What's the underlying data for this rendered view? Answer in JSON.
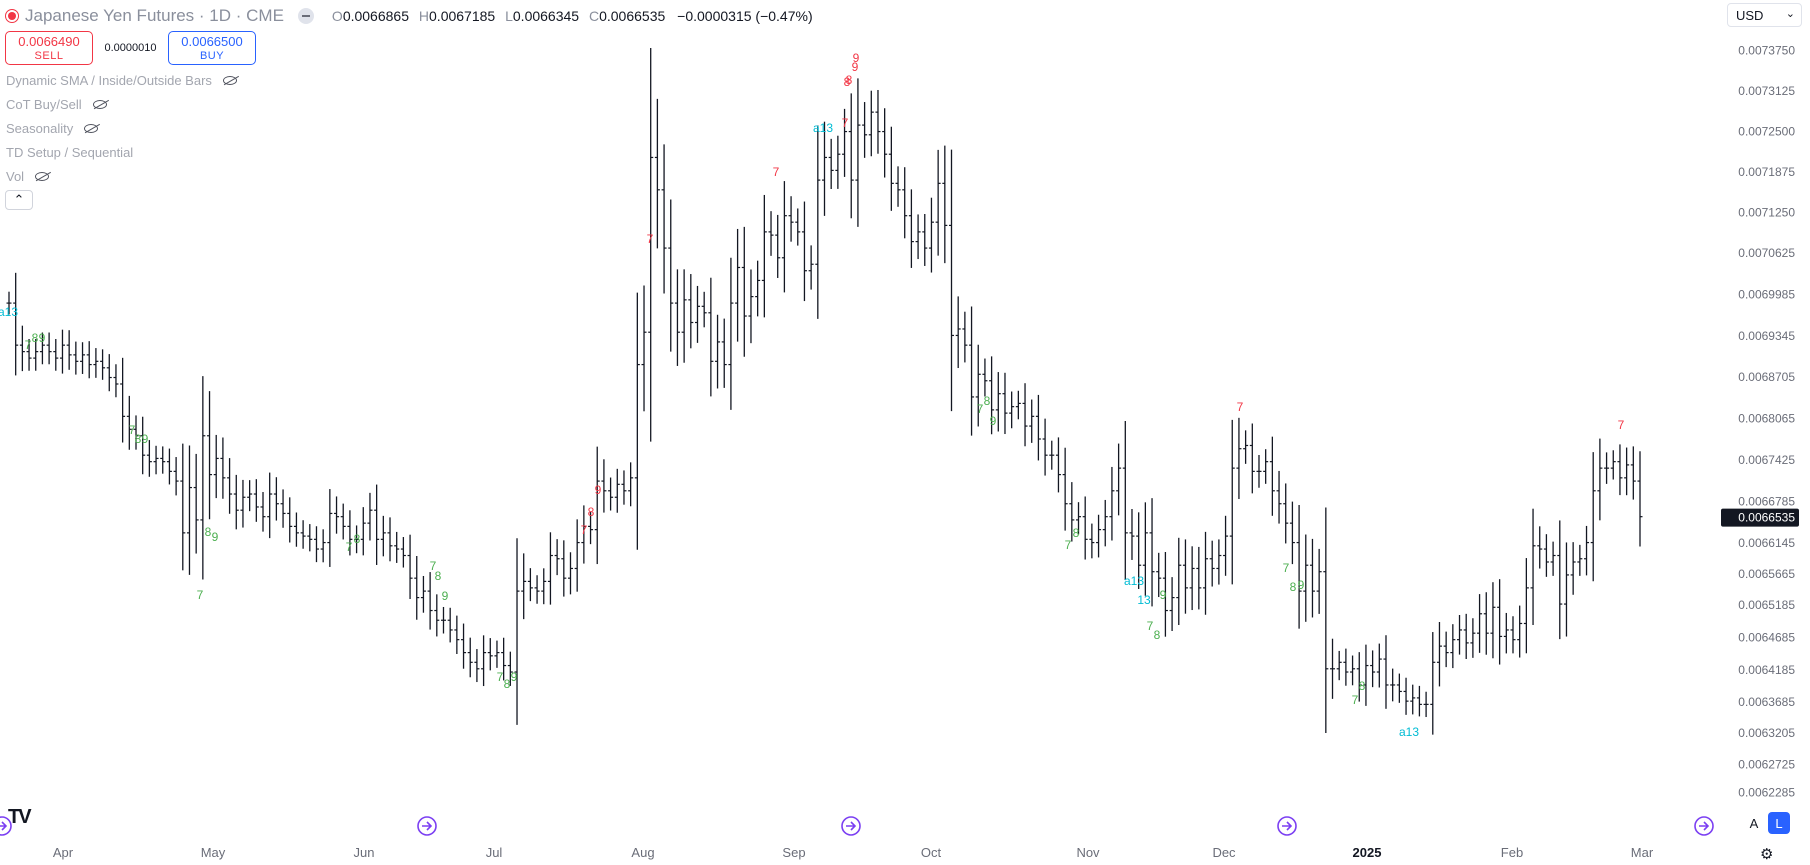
{
  "header": {
    "symbol": "Japanese Yen Futures · 1D · CME",
    "open_key": "O",
    "open": "0.0066865",
    "high_key": "H",
    "high": "0.0067185",
    "low_key": "L",
    "low": "0.0066345",
    "close_key": "C",
    "close": "0.0066535",
    "change": "−0.0000315 (−0.47%)"
  },
  "trade": {
    "sell_price": "0.0066490",
    "sell_label": "SELL",
    "spread": "0.0000010",
    "buy_price": "0.0066500",
    "buy_label": "BUY"
  },
  "indicators": [
    {
      "label": "Dynamic SMA / Inside/Outside Bars"
    },
    {
      "label": "CoT Buy/Sell"
    },
    {
      "label": "Seasonality"
    },
    {
      "label": "TD Setup / Sequential"
    },
    {
      "label": "Vol"
    }
  ],
  "currency": "USD",
  "scale_buttons": {
    "auto": "A",
    "log": "L"
  },
  "colors": {
    "buy_setup": "#4caf50",
    "sell_setup": "#f23645",
    "countdown": "#00bcd4",
    "bars": "#131722",
    "axis_text": "#6a6d78",
    "last_price_bg": "#131722"
  },
  "chart_data": {
    "type": "ohlc",
    "title": "Japanese Yen Futures · 1D · CME",
    "xlabel": "",
    "ylabel": "",
    "ylim": [
      0.006225,
      0.00741
    ],
    "y_ticks": [
      "0.0073750",
      "0.0073125",
      "0.0072500",
      "0.0071875",
      "0.0071250",
      "0.0070625",
      "0.0069985",
      "0.0069345",
      "0.0068705",
      "0.0068065",
      "0.0067425",
      "0.0066785",
      "0.0066145",
      "0.0065665",
      "0.0065185",
      "0.0064685",
      "0.0064185",
      "0.0063685",
      "0.0063205",
      "0.0062725",
      "0.0062285"
    ],
    "x_ticks": [
      "Apr",
      "May",
      "Jun",
      "Jul",
      "Aug",
      "Sep",
      "Oct",
      "Nov",
      "Dec",
      "2025",
      "Feb",
      "Mar"
    ],
    "last_price": "0.0066535",
    "closes": [
      0.006985,
      0.00692,
      0.00691,
      0.0069,
      0.00691,
      0.00692,
      0.00691,
      0.0069,
      0.00692,
      0.006905,
      0.006895,
      0.006905,
      0.00689,
      0.006895,
      0.006885,
      0.00687,
      0.00686,
      0.00681,
      0.00679,
      0.00678,
      0.00675,
      0.00674,
      0.006745,
      0.00674,
      0.006725,
      0.00671,
      0.00663,
      0.0067,
      0.00665,
      0.00678,
      0.00672,
      0.006745,
      0.006715,
      0.00669,
      0.006665,
      0.006685,
      0.00669,
      0.00667,
      0.006655,
      0.00669,
      0.006675,
      0.00666,
      0.00664,
      0.00663,
      0.006625,
      0.00662,
      0.006605,
      0.006615,
      0.00666,
      0.006655,
      0.00664,
      0.00662,
      0.00662,
      0.006645,
      0.006665,
      0.00662,
      0.00663,
      0.00661,
      0.006605,
      0.006595,
      0.00656,
      0.00653,
      0.00654,
      0.00651,
      0.006495,
      0.006495,
      0.00648,
      0.006465,
      0.006445,
      0.00643,
      0.00642,
      0.006445,
      0.00644,
      0.006445,
      0.006425,
      0.006415,
      0.00654,
      0.006555,
      0.006545,
      0.00654,
      0.006555,
      0.006595,
      0.00659,
      0.00656,
      0.006575,
      0.006615,
      0.00664,
      0.006635,
      0.00671,
      0.006695,
      0.006685,
      0.006705,
      0.006695,
      0.006715,
      0.00689,
      0.00694,
      0.00721,
      0.00716,
      0.00707,
      0.006985,
      0.00694,
      0.00699,
      0.006955,
      0.00698,
      0.00697,
      0.006895,
      0.006925,
      0.00689,
      0.006985,
      0.00704,
      0.006965,
      0.006995,
      0.00702,
      0.007095,
      0.00709,
      0.007055,
      0.00712,
      0.00711,
      0.007095,
      0.007035,
      0.007045,
      0.007175,
      0.00721,
      0.00719,
      0.007215,
      0.00725,
      0.007175,
      0.00726,
      0.007245,
      0.00728,
      0.00725,
      0.007215,
      0.00717,
      0.00716,
      0.00712,
      0.00708,
      0.007095,
      0.00707,
      0.00711,
      0.00717,
      0.007105,
      0.006935,
      0.006945,
      0.00692,
      0.00684,
      0.006875,
      0.006865,
      0.00682,
      0.006845,
      0.006815,
      0.006825,
      0.00683,
      0.006795,
      0.00681,
      0.006775,
      0.00675,
      0.00675,
      0.00672,
      0.006675,
      0.00665,
      0.006655,
      0.00662,
      0.006615,
      0.006635,
      0.006655,
      0.006695,
      0.00673,
      0.00663,
      0.006625,
      0.00658,
      0.00663,
      0.00657,
      0.00656,
      0.00651,
      0.00653,
      0.00658,
      0.006545,
      0.006575,
      0.006545,
      0.00659,
      0.006575,
      0.006595,
      0.006625,
      0.00673,
      0.00676,
      0.006765,
      0.006725,
      0.006725,
      0.00674,
      0.006695,
      0.006675,
      0.006645,
      0.006615,
      0.00654,
      0.00658,
      0.00654,
      0.00657,
      0.00642,
      0.00642,
      0.00643,
      0.006415,
      0.00642,
      0.006395,
      0.006425,
      0.006415,
      0.006435,
      0.006395,
      0.006395,
      0.006385,
      0.00637,
      0.006375,
      0.006365,
      0.006365,
      0.00643,
      0.006455,
      0.006445,
      0.006465,
      0.00648,
      0.00646,
      0.006475,
      0.006505,
      0.006475,
      0.006515,
      0.00647,
      0.00648,
      0.006465,
      0.00649,
      0.006545,
      0.00661,
      0.006605,
      0.006585,
      0.006595,
      0.00652,
      0.006565,
      0.006585,
      0.00659,
      0.006615,
      0.006695,
      0.00673,
      0.00673,
      0.00674,
      0.006715,
      0.006735,
      0.00671,
      0.006655
    ]
  },
  "td_labels": [
    {
      "t": "a13",
      "c": "countdown"
    },
    {
      "t": "7",
      "c": "buy"
    },
    {
      "t": "8",
      "c": "buy"
    },
    {
      "t": "9",
      "c": "buy"
    },
    {
      "t": "7",
      "c": "buy"
    },
    {
      "t": "8",
      "c": "buy"
    },
    {
      "t": "9",
      "c": "buy"
    },
    {
      "t": "8",
      "c": "buy"
    },
    {
      "t": "9",
      "c": "buy"
    },
    {
      "t": "7",
      "c": "buy"
    },
    {
      "t": "7",
      "c": "buy"
    },
    {
      "t": "8",
      "c": "buy"
    },
    {
      "t": "7",
      "c": "buy"
    },
    {
      "t": "8",
      "c": "buy"
    },
    {
      "t": "9",
      "c": "buy"
    },
    {
      "t": "7",
      "c": "buy"
    },
    {
      "t": "8",
      "c": "buy"
    },
    {
      "t": "9",
      "c": "buy"
    },
    {
      "t": "7",
      "c": "sell"
    },
    {
      "t": "8",
      "c": "sell"
    },
    {
      "t": "9",
      "c": "sell"
    },
    {
      "t": "7",
      "c": "sell"
    },
    {
      "t": "8",
      "c": "sell"
    },
    {
      "t": "9",
      "c": "sell"
    },
    {
      "t": "7",
      "c": "sell"
    },
    {
      "t": "a13",
      "c": "countdown"
    },
    {
      "t": "7",
      "c": "sell"
    },
    {
      "t": "8",
      "c": "sell"
    },
    {
      "t": "9",
      "c": "sell"
    },
    {
      "t": "7",
      "c": "buy"
    },
    {
      "t": "8",
      "c": "buy"
    },
    {
      "t": "9",
      "c": "buy"
    },
    {
      "t": "7",
      "c": "buy"
    },
    {
      "t": "8",
      "c": "buy"
    },
    {
      "t": "a13",
      "c": "countdown"
    },
    {
      "t": "13",
      "c": "countdown"
    },
    {
      "t": "9",
      "c": "buy"
    },
    {
      "t": "7",
      "c": "buy"
    },
    {
      "t": "8",
      "c": "buy"
    },
    {
      "t": "7",
      "c": "sell"
    },
    {
      "t": "7",
      "c": "buy"
    },
    {
      "t": "8",
      "c": "buy"
    },
    {
      "t": "9",
      "c": "buy"
    },
    {
      "t": "7",
      "c": "buy"
    },
    {
      "t": "8",
      "c": "buy"
    },
    {
      "t": "a13",
      "c": "countdown"
    },
    {
      "t": "7",
      "c": "sell"
    }
  ]
}
